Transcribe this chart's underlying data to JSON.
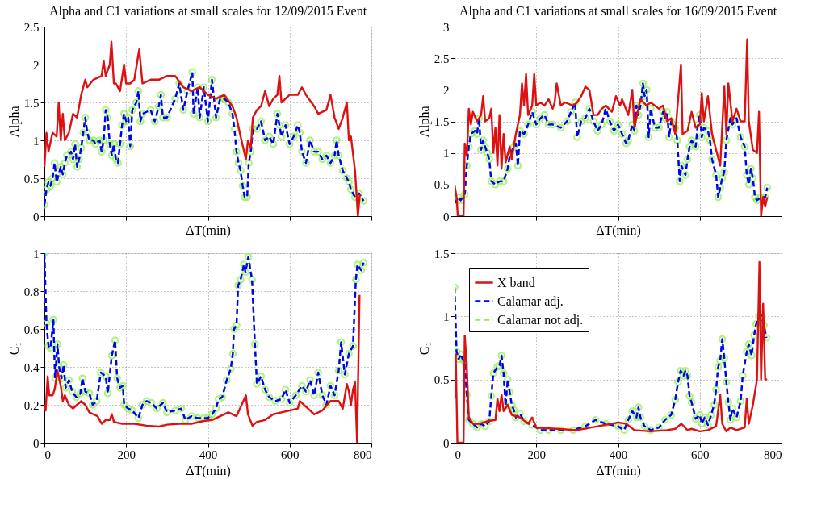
{
  "chart_data": [
    {
      "type": "line",
      "title": "Alpha and C1 variations at small scales for 12/09/2015  Event",
      "xlabel": "ΔT(min)",
      "ylabel": "Alpha",
      "xlim": [
        0,
        800
      ],
      "xticks": [
        0,
        200,
        400,
        600,
        800
      ],
      "ylim": [
        0,
        2.5
      ],
      "yticks": [
        0,
        0.5,
        1,
        1.5,
        2,
        2.5
      ],
      "grid": true,
      "tick_labels": "y",
      "series": [
        {
          "color": "#dd1111",
          "line_style": "solid",
          "marker": "none",
          "x": [
            0,
            5,
            10,
            20,
            30,
            35,
            40,
            45,
            50,
            60,
            70,
            80,
            90,
            100,
            105,
            120,
            140,
            145,
            150,
            160,
            164,
            170,
            175,
            185,
            195,
            200,
            210,
            220,
            232,
            240,
            260,
            280,
            300,
            320,
            340,
            360,
            380,
            400,
            420,
            440,
            460,
            470,
            480,
            493,
            498,
            505,
            510,
            520,
            530,
            540,
            550,
            560,
            570,
            575,
            580,
            600,
            620,
            630,
            640,
            660,
            670,
            690,
            700,
            710,
            720,
            730,
            740,
            745,
            750,
            760,
            767,
            772
          ],
          "values": [
            0.65,
            1.1,
            0.85,
            1.1,
            1.05,
            1.5,
            1.0,
            1.35,
            1.0,
            1.1,
            1.35,
            1.3,
            1.6,
            1.8,
            1.7,
            1.8,
            1.85,
            2.05,
            1.85,
            2.0,
            2.3,
            1.75,
            1.75,
            1.65,
            2.0,
            1.75,
            1.75,
            1.8,
            2.2,
            1.75,
            1.8,
            1.8,
            1.85,
            1.85,
            1.7,
            1.65,
            1.7,
            1.6,
            1.55,
            1.6,
            1.45,
            1.3,
            1.05,
            0.75,
            1.0,
            0.9,
            1.3,
            1.4,
            1.45,
            1.65,
            1.45,
            1.55,
            1.6,
            1.85,
            1.5,
            1.6,
            1.6,
            1.7,
            1.6,
            1.45,
            1.35,
            1.4,
            1.6,
            1.3,
            1.15,
            1.3,
            1.5,
            1.0,
            1.05,
            0.6,
            0.0,
            0.3
          ]
        },
        {
          "color": "#0000ff",
          "line_style": "dashed",
          "marker": "none",
          "x": [
            0,
            5,
            10,
            15,
            20,
            25,
            30,
            40,
            45,
            50,
            55,
            65,
            70,
            75,
            80,
            85,
            90,
            95,
            100,
            105,
            110,
            120,
            125,
            135,
            140,
            145,
            150,
            155,
            160,
            165,
            170,
            175,
            180,
            185,
            190,
            195,
            200,
            205,
            210,
            215,
            225,
            230,
            235,
            240,
            260,
            270,
            280,
            285,
            290,
            300,
            320,
            330,
            340,
            350,
            362,
            365,
            375,
            380,
            390,
            400,
            410,
            420,
            430,
            440,
            450,
            460,
            465,
            470,
            475,
            480,
            485,
            490,
            496,
            500,
            505,
            510,
            520,
            530,
            540,
            550,
            560,
            570,
            575,
            580,
            590,
            600,
            610,
            620,
            625,
            630,
            640,
            650,
            660,
            670,
            680,
            690,
            700,
            710,
            715,
            720,
            730,
            740,
            745,
            750,
            760,
            770,
            781
          ],
          "values": [
            0.15,
            0.35,
            0.45,
            0.4,
            0.5,
            0.7,
            0.45,
            0.65,
            0.55,
            0.7,
            0.8,
            0.85,
            0.75,
            0.95,
            0.65,
            0.75,
            0.9,
            1.1,
            1.3,
            1.1,
            1.0,
            1.0,
            0.95,
            1.0,
            0.85,
            1.0,
            1.4,
            1.3,
            0.95,
            0.8,
            0.95,
            0.75,
            0.7,
            0.95,
            1.2,
            1.35,
            1.25,
            1.3,
            0.92,
            1.4,
            1.5,
            1.65,
            1.25,
            1.35,
            1.4,
            1.25,
            1.45,
            1.6,
            1.3,
            1.3,
            1.55,
            1.75,
            1.4,
            1.65,
            1.9,
            1.35,
            1.7,
            1.3,
            1.7,
            1.25,
            1.8,
            1.3,
            1.55,
            1.55,
            1.5,
            1.35,
            1.15,
            0.85,
            0.7,
            0.6,
            0.4,
            0.25,
            0.25,
            0.7,
            0.85,
            1.15,
            1.15,
            1.25,
            1.0,
            1.05,
            0.95,
            1.35,
            1.2,
            1.05,
            1.2,
            0.95,
            1.05,
            1.2,
            1.1,
            0.85,
            0.7,
            1.0,
            0.85,
            0.85,
            0.75,
            0.8,
            0.7,
            0.8,
            1.0,
            0.8,
            0.6,
            0.5,
            0.45,
            0.35,
            0.25,
            0.3,
            0.2
          ]
        },
        {
          "color": "#90ee50",
          "line_style": "dashed",
          "marker": "circle",
          "x": [
            0,
            5,
            10,
            15,
            20,
            25,
            30,
            40,
            45,
            50,
            55,
            65,
            70,
            75,
            80,
            85,
            90,
            95,
            100,
            105,
            110,
            120,
            125,
            135,
            140,
            145,
            150,
            155,
            160,
            165,
            170,
            175,
            180,
            185,
            190,
            195,
            200,
            205,
            210,
            215,
            225,
            230,
            235,
            240,
            260,
            270,
            280,
            285,
            290,
            300,
            320,
            330,
            340,
            350,
            362,
            365,
            375,
            380,
            390,
            400,
            410,
            420,
            430,
            440,
            450,
            460,
            465,
            470,
            475,
            480,
            485,
            490,
            496,
            500,
            505,
            510,
            520,
            530,
            540,
            550,
            560,
            570,
            575,
            580,
            590,
            600,
            610,
            620,
            625,
            630,
            640,
            650,
            660,
            670,
            680,
            690,
            700,
            710,
            715,
            720,
            730,
            740,
            745,
            750,
            760,
            770,
            781
          ],
          "values": [
            0.15,
            0.35,
            0.45,
            0.4,
            0.5,
            0.7,
            0.45,
            0.65,
            0.55,
            0.7,
            0.8,
            0.85,
            0.75,
            0.95,
            0.65,
            0.75,
            0.9,
            1.1,
            1.3,
            1.1,
            1.0,
            1.0,
            0.95,
            1.0,
            0.85,
            1.0,
            1.4,
            1.3,
            0.95,
            0.8,
            0.95,
            0.75,
            0.7,
            0.95,
            1.2,
            1.35,
            1.25,
            1.3,
            0.92,
            1.4,
            1.5,
            1.65,
            1.25,
            1.35,
            1.4,
            1.25,
            1.45,
            1.6,
            1.3,
            1.3,
            1.55,
            1.75,
            1.4,
            1.65,
            1.9,
            1.35,
            1.7,
            1.3,
            1.7,
            1.25,
            1.8,
            1.3,
            1.55,
            1.55,
            1.5,
            1.35,
            1.15,
            0.85,
            0.7,
            0.6,
            0.4,
            0.25,
            0.25,
            0.7,
            0.85,
            1.15,
            1.15,
            1.25,
            1.0,
            1.05,
            0.95,
            1.35,
            1.2,
            1.05,
            1.2,
            0.95,
            1.05,
            1.2,
            1.1,
            0.85,
            0.7,
            1.0,
            0.85,
            0.85,
            0.75,
            0.8,
            0.7,
            0.8,
            1.0,
            0.8,
            0.6,
            0.5,
            0.45,
            0.35,
            0.25,
            0.3,
            0.2
          ]
        }
      ]
    },
    {
      "type": "line",
      "title": "Alpha and C1 variations at small scales for 16/09/2015  Event",
      "xlabel": "ΔT(min)",
      "ylabel": "Alpha",
      "xlim": [
        0,
        800
      ],
      "xticks": [
        0,
        200,
        400,
        600,
        800
      ],
      "ylim": [
        0,
        3
      ],
      "yticks": [
        0,
        0.5,
        1,
        1.5,
        2,
        2.5,
        3
      ],
      "grid": true,
      "tick_labels": "y",
      "series": [
        {
          "color": "#dd1111",
          "line_style": "solid",
          "marker": "none",
          "x": [
            0,
            5,
            8,
            22,
            25,
            30,
            35,
            40,
            45,
            55,
            65,
            70,
            75,
            85,
            90,
            95,
            100,
            105,
            110,
            115,
            120,
            125,
            135,
            140,
            150,
            160,
            165,
            170,
            175,
            180,
            190,
            195,
            200,
            210,
            220,
            230,
            240,
            245,
            250,
            260,
            270,
            290,
            300,
            310,
            320,
            330,
            340,
            350,
            360,
            370,
            385,
            395,
            405,
            410,
            425,
            435,
            440,
            455,
            470,
            480,
            500,
            510,
            520,
            530,
            540,
            554,
            558,
            570,
            580,
            590,
            600,
            605,
            610,
            620,
            630,
            640,
            650,
            660,
            665,
            670,
            680,
            690,
            700,
            710,
            716,
            720,
            730,
            740,
            745,
            750,
            755,
            760,
            765
          ],
          "values": [
            0.5,
            0.3,
            0.0,
            0.0,
            1.15,
            0.95,
            1.7,
            1.45,
            1.65,
            1.5,
            1.6,
            1.9,
            1.5,
            1.55,
            1.7,
            1.0,
            1.4,
            0.8,
            1.6,
            0.75,
            1.3,
            0.85,
            1.1,
            0.9,
            1.3,
            1.6,
            2.1,
            1.75,
            2.25,
            1.6,
            1.75,
            2.25,
            1.75,
            1.8,
            1.75,
            1.85,
            1.7,
            1.8,
            2.1,
            1.75,
            1.8,
            1.75,
            1.8,
            1.9,
            2.05,
            2.0,
            1.6,
            1.6,
            1.7,
            1.75,
            1.65,
            1.9,
            1.75,
            1.85,
            1.6,
            2.0,
            1.4,
            1.85,
            1.75,
            1.8,
            1.7,
            1.75,
            1.5,
            1.55,
            1.3,
            2.4,
            1.3,
            1.35,
            1.65,
            1.4,
            1.45,
            1.95,
            1.5,
            1.9,
            1.3,
            1.05,
            0.8,
            2.05,
            1.3,
            2.1,
            1.5,
            1.7,
            1.5,
            1.5,
            2.8,
            1.5,
            1.05,
            1.0,
            1.65,
            0.0,
            0.3,
            0.15,
            0.3
          ]
        },
        {
          "color": "#0000ff",
          "line_style": "dashed",
          "marker": "none",
          "x": [
            0,
            10,
            15,
            25,
            30,
            35,
            40,
            50,
            55,
            60,
            65,
            70,
            75,
            80,
            85,
            90,
            100,
            110,
            120,
            130,
            135,
            145,
            150,
            155,
            160,
            170,
            180,
            190,
            200,
            210,
            220,
            230,
            240,
            260,
            275,
            285,
            295,
            300,
            310,
            320,
            330,
            340,
            350,
            360,
            370,
            380,
            390,
            400,
            410,
            420,
            425,
            435,
            440,
            445,
            450,
            455,
            461,
            465,
            470,
            475,
            480,
            490,
            500,
            510,
            515,
            520,
            525,
            530,
            540,
            545,
            551,
            555,
            565,
            570,
            575,
            580,
            590,
            595,
            600,
            605,
            610,
            620,
            625,
            630,
            640,
            645,
            650,
            655,
            660,
            665,
            675,
            680,
            690,
            700,
            710,
            715,
            720,
            725,
            730,
            735,
            740,
            750,
            760,
            765
          ],
          "values": [
            0.2,
            0.3,
            0.25,
            0.35,
            0.8,
            1.1,
            1.3,
            1.35,
            1.3,
            1.55,
            1.05,
            1.2,
            1.1,
            1.0,
            0.9,
            0.55,
            0.5,
            0.55,
            0.55,
            0.75,
            0.95,
            1.1,
            1.15,
            0.8,
            1.35,
            1.3,
            1.45,
            1.65,
            1.45,
            1.55,
            1.6,
            1.45,
            1.45,
            1.4,
            1.5,
            1.65,
            1.8,
            1.25,
            1.5,
            1.55,
            1.7,
            1.5,
            1.35,
            1.45,
            1.7,
            1.5,
            1.35,
            1.45,
            1.3,
            1.15,
            1.2,
            1.45,
            1.35,
            1.75,
            1.6,
            1.75,
            2.1,
            1.9,
            2.0,
            1.25,
            1.7,
            1.4,
            1.4,
            1.65,
            1.55,
            1.65,
            1.25,
            1.5,
            1.4,
            1.2,
            0.55,
            0.8,
            0.65,
            0.9,
            1.1,
            1.2,
            1.1,
            1.45,
            1.6,
            1.25,
            1.4,
            1.35,
            1.2,
            0.9,
            0.65,
            0.3,
            0.45,
            0.6,
            0.7,
            1.2,
            1.55,
            1.45,
            1.55,
            1.25,
            1.1,
            0.65,
            0.5,
            0.75,
            0.6,
            0.3,
            0.25,
            0.3,
            0.3,
            0.45
          ]
        },
        {
          "color": "#90ee50",
          "line_style": "dashed",
          "marker": "circle",
          "x": [
            0,
            10,
            15,
            25,
            30,
            35,
            40,
            50,
            55,
            60,
            65,
            70,
            75,
            80,
            85,
            90,
            100,
            110,
            120,
            130,
            135,
            145,
            150,
            155,
            160,
            170,
            180,
            190,
            200,
            210,
            220,
            230,
            240,
            260,
            275,
            285,
            295,
            300,
            310,
            320,
            330,
            340,
            350,
            360,
            370,
            380,
            390,
            400,
            410,
            420,
            425,
            435,
            440,
            445,
            450,
            455,
            461,
            465,
            470,
            475,
            480,
            490,
            500,
            510,
            515,
            520,
            525,
            530,
            540,
            545,
            551,
            555,
            565,
            570,
            575,
            580,
            590,
            595,
            600,
            605,
            610,
            620,
            625,
            630,
            640,
            645,
            650,
            655,
            660,
            665,
            675,
            680,
            690,
            700,
            710,
            715,
            720,
            725,
            730,
            735,
            740,
            750,
            760,
            765
          ],
          "values": [
            0.2,
            0.3,
            0.25,
            0.35,
            0.8,
            1.1,
            1.3,
            1.35,
            1.3,
            1.55,
            1.05,
            1.2,
            1.1,
            1.0,
            0.9,
            0.55,
            0.5,
            0.55,
            0.55,
            0.75,
            0.95,
            1.1,
            1.15,
            0.8,
            1.35,
            1.3,
            1.45,
            1.65,
            1.45,
            1.55,
            1.6,
            1.45,
            1.45,
            1.4,
            1.5,
            1.65,
            1.8,
            1.25,
            1.5,
            1.55,
            1.7,
            1.5,
            1.35,
            1.45,
            1.7,
            1.5,
            1.35,
            1.45,
            1.3,
            1.15,
            1.2,
            1.45,
            1.35,
            1.75,
            1.6,
            1.75,
            2.1,
            1.9,
            2.0,
            1.25,
            1.7,
            1.4,
            1.4,
            1.65,
            1.55,
            1.65,
            1.25,
            1.5,
            1.4,
            1.2,
            0.55,
            0.8,
            0.65,
            0.9,
            1.1,
            1.2,
            1.1,
            1.45,
            1.6,
            1.25,
            1.4,
            1.35,
            1.2,
            0.9,
            0.65,
            0.3,
            0.45,
            0.6,
            0.7,
            1.2,
            1.55,
            1.45,
            1.55,
            1.25,
            1.1,
            0.65,
            0.5,
            0.75,
            0.6,
            0.3,
            0.25,
            0.3,
            0.3,
            0.45
          ]
        }
      ]
    },
    {
      "type": "line",
      "xlabel": "ΔT(min)",
      "ylabel": "C₁",
      "xlim": [
        0,
        800
      ],
      "xticks": [
        0,
        200,
        400,
        600,
        800
      ],
      "ylim": [
        0,
        1
      ],
      "yticks": [
        0,
        0.2,
        0.4,
        0.6,
        0.8,
        1
      ],
      "grid": true,
      "series": [
        {
          "color": "#dd1111",
          "line_style": "solid",
          "marker": "none",
          "x": [
            0,
            3,
            8,
            12,
            20,
            25,
            32,
            35,
            40,
            45,
            50,
            60,
            70,
            80,
            90,
            100,
            110,
            120,
            130,
            140,
            150,
            160,
            165,
            170,
            190,
            220,
            250,
            280,
            300,
            330,
            360,
            390,
            410,
            430,
            450,
            470,
            493,
            498,
            509,
            520,
            540,
            560,
            580,
            600,
            620,
            625,
            640,
            660,
            680,
            700,
            720,
            730,
            740,
            745,
            750,
            755,
            760,
            765,
            771
          ],
          "values": [
            0.2,
            0.17,
            0.35,
            0.25,
            0.25,
            0.28,
            0.38,
            0.35,
            0.3,
            0.22,
            0.25,
            0.2,
            0.18,
            0.2,
            0.22,
            0.2,
            0.16,
            0.15,
            0.14,
            0.1,
            0.12,
            0.12,
            0.15,
            0.11,
            0.1,
            0.1,
            0.09,
            0.085,
            0.095,
            0.1,
            0.1,
            0.115,
            0.12,
            0.14,
            0.16,
            0.14,
            0.25,
            0.15,
            0.09,
            0.11,
            0.12,
            0.15,
            0.16,
            0.17,
            0.18,
            0.22,
            0.19,
            0.15,
            0.17,
            0.22,
            0.22,
            0.18,
            0.31,
            0.27,
            0.2,
            0.28,
            0.32,
            0.0,
            0.78
          ]
        },
        {
          "color": "#0000ff",
          "line_style": "dashed",
          "marker": "none",
          "x": [
            0,
            5,
            10,
            15,
            22,
            26,
            32,
            36,
            42,
            47,
            52,
            60,
            68,
            78,
            88,
            93,
            100,
            110,
            118,
            128,
            138,
            150,
            155,
            165,
            173,
            178,
            185,
            192,
            195,
            205,
            215,
            230,
            240,
            250,
            262,
            275,
            290,
            300,
            320,
            335,
            345,
            360,
            375,
            390,
            400,
            410,
            420,
            426,
            435,
            446,
            456,
            461,
            464,
            470,
            474,
            480,
            488,
            492,
            499,
            508,
            515,
            520,
            530,
            540,
            550,
            565,
            580,
            590,
            600,
            615,
            630,
            640,
            650,
            660,
            670,
            680,
            690,
            700,
            710,
            720,
            726,
            735,
            745,
            755,
            762,
            766,
            775,
            781
          ],
          "values": [
            1.0,
            0.63,
            0.51,
            0.5,
            0.65,
            0.34,
            0.52,
            0.4,
            0.34,
            0.41,
            0.29,
            0.33,
            0.27,
            0.24,
            0.26,
            0.34,
            0.27,
            0.26,
            0.2,
            0.22,
            0.37,
            0.35,
            0.26,
            0.46,
            0.54,
            0.34,
            0.29,
            0.3,
            0.2,
            0.18,
            0.17,
            0.13,
            0.2,
            0.22,
            0.21,
            0.18,
            0.21,
            0.16,
            0.17,
            0.18,
            0.12,
            0.14,
            0.13,
            0.13,
            0.13,
            0.15,
            0.18,
            0.23,
            0.24,
            0.33,
            0.39,
            0.47,
            0.6,
            0.62,
            0.83,
            0.86,
            0.94,
            0.9,
            0.98,
            0.86,
            0.52,
            0.31,
            0.35,
            0.28,
            0.24,
            0.22,
            0.23,
            0.28,
            0.21,
            0.25,
            0.3,
            0.27,
            0.33,
            0.25,
            0.37,
            0.25,
            0.2,
            0.3,
            0.25,
            0.38,
            0.53,
            0.36,
            0.47,
            0.51,
            0.86,
            0.94,
            0.91,
            0.95
          ]
        },
        {
          "color": "#90ee50",
          "line_style": "dashed",
          "marker": "circle",
          "x": [
            0,
            5,
            10,
            15,
            22,
            26,
            32,
            36,
            42,
            47,
            52,
            60,
            68,
            78,
            88,
            93,
            100,
            110,
            118,
            128,
            138,
            150,
            155,
            165,
            173,
            178,
            185,
            192,
            195,
            205,
            215,
            230,
            240,
            250,
            262,
            275,
            290,
            300,
            320,
            335,
            345,
            360,
            375,
            390,
            400,
            410,
            420,
            426,
            435,
            446,
            456,
            461,
            464,
            470,
            474,
            480,
            488,
            492,
            499,
            508,
            515,
            520,
            530,
            540,
            550,
            565,
            580,
            590,
            600,
            615,
            630,
            640,
            650,
            660,
            670,
            680,
            690,
            700,
            710,
            720,
            726,
            735,
            745,
            755,
            762,
            766,
            775,
            781
          ],
          "values": [
            1.0,
            0.63,
            0.51,
            0.5,
            0.65,
            0.34,
            0.52,
            0.4,
            0.34,
            0.41,
            0.29,
            0.33,
            0.27,
            0.24,
            0.26,
            0.34,
            0.27,
            0.26,
            0.2,
            0.22,
            0.37,
            0.35,
            0.26,
            0.46,
            0.54,
            0.34,
            0.29,
            0.3,
            0.2,
            0.18,
            0.17,
            0.13,
            0.2,
            0.22,
            0.21,
            0.18,
            0.21,
            0.16,
            0.17,
            0.18,
            0.12,
            0.14,
            0.13,
            0.13,
            0.13,
            0.15,
            0.18,
            0.23,
            0.24,
            0.33,
            0.39,
            0.47,
            0.6,
            0.62,
            0.83,
            0.86,
            0.94,
            0.9,
            0.98,
            0.86,
            0.52,
            0.31,
            0.35,
            0.28,
            0.24,
            0.22,
            0.23,
            0.28,
            0.21,
            0.25,
            0.3,
            0.27,
            0.33,
            0.25,
            0.37,
            0.25,
            0.2,
            0.3,
            0.25,
            0.38,
            0.53,
            0.36,
            0.47,
            0.51,
            0.86,
            0.94,
            0.91,
            0.95
          ]
        }
      ]
    },
    {
      "type": "line",
      "xlabel": "ΔT(min)",
      "ylabel": "C₁",
      "xlim": [
        0,
        800
      ],
      "xticks": [
        0,
        200,
        400,
        600,
        800
      ],
      "ylim": [
        0,
        1.5
      ],
      "yticks": [
        0,
        0.5,
        1,
        1.5
      ],
      "grid": true,
      "legend": "top left",
      "series": [
        {
          "name": "X band",
          "color": "#dd1111",
          "line_style": "solid",
          "marker": "none",
          "x": [
            0,
            3,
            7,
            22,
            25,
            30,
            35,
            45,
            60,
            80,
            100,
            105,
            110,
            115,
            120,
            130,
            140,
            160,
            180,
            190,
            200,
            250,
            300,
            350,
            400,
            420,
            440,
            480,
            520,
            540,
            555,
            570,
            580,
            600,
            620,
            640,
            650,
            655,
            665,
            675,
            690,
            710,
            715,
            720,
            730,
            740,
            746,
            750,
            755,
            760,
            765
          ],
          "values": [
            0.35,
            0.7,
            0.0,
            0.0,
            0.85,
            0.6,
            0.2,
            0.15,
            0.15,
            0.17,
            0.18,
            0.35,
            0.25,
            0.38,
            0.25,
            0.3,
            0.22,
            0.2,
            0.15,
            0.2,
            0.12,
            0.11,
            0.1,
            0.13,
            0.16,
            0.15,
            0.1,
            0.09,
            0.1,
            0.11,
            0.15,
            0.1,
            0.11,
            0.09,
            0.1,
            0.13,
            0.38,
            0.15,
            0.09,
            0.12,
            0.1,
            0.12,
            0.35,
            0.15,
            0.3,
            0.5,
            1.43,
            0.5,
            1.1,
            0.5,
            0.5
          ]
        },
        {
          "name": "Calamar adj.",
          "color": "#0000ff",
          "line_style": "dashed",
          "marker": "none",
          "x": [
            0,
            5,
            10,
            15,
            20,
            25,
            30,
            35,
            45,
            55,
            65,
            75,
            85,
            90,
            95,
            105,
            110,
            115,
            120,
            125,
            130,
            135,
            140,
            145,
            150,
            160,
            170,
            190,
            210,
            230,
            260,
            290,
            320,
            345,
            370,
            400,
            415,
            425,
            435,
            445,
            450,
            455,
            465,
            480,
            500,
            515,
            530,
            540,
            547,
            553,
            560,
            565,
            570,
            575,
            580,
            590,
            600,
            605,
            612,
            620,
            628,
            635,
            640,
            645,
            650,
            655,
            660,
            665,
            670,
            675,
            680,
            690,
            700,
            705,
            715,
            720,
            727,
            733,
            738,
            745,
            750,
            757,
            763
          ],
          "values": [
            1.23,
            0.72,
            0.66,
            0.7,
            0.66,
            0.63,
            0.38,
            0.18,
            0.15,
            0.12,
            0.15,
            0.13,
            0.17,
            0.37,
            0.55,
            0.6,
            0.61,
            0.69,
            0.55,
            0.29,
            0.5,
            0.4,
            0.3,
            0.26,
            0.2,
            0.23,
            0.17,
            0.14,
            0.1,
            0.1,
            0.1,
            0.1,
            0.13,
            0.18,
            0.15,
            0.13,
            0.1,
            0.18,
            0.25,
            0.2,
            0.28,
            0.2,
            0.13,
            0.1,
            0.12,
            0.18,
            0.22,
            0.34,
            0.48,
            0.57,
            0.53,
            0.57,
            0.53,
            0.37,
            0.32,
            0.19,
            0.22,
            0.15,
            0.2,
            0.14,
            0.22,
            0.3,
            0.42,
            0.6,
            0.65,
            0.82,
            0.67,
            0.48,
            0.32,
            0.18,
            0.27,
            0.2,
            0.33,
            0.53,
            0.72,
            0.78,
            0.69,
            0.85,
            0.94,
            1.0,
            1.01,
            0.93,
            0.83
          ]
        },
        {
          "name": "Calamar not adj.",
          "color": "#90ee50",
          "line_style": "dashed",
          "marker": "circle",
          "x": [
            0,
            5,
            10,
            15,
            20,
            25,
            30,
            35,
            45,
            55,
            65,
            75,
            85,
            90,
            95,
            105,
            110,
            115,
            120,
            125,
            130,
            135,
            140,
            145,
            150,
            160,
            170,
            190,
            210,
            230,
            260,
            290,
            320,
            345,
            370,
            400,
            415,
            425,
            435,
            445,
            450,
            455,
            465,
            480,
            500,
            515,
            530,
            540,
            547,
            553,
            560,
            565,
            570,
            575,
            580,
            590,
            600,
            605,
            612,
            620,
            628,
            635,
            640,
            645,
            650,
            655,
            660,
            665,
            670,
            675,
            680,
            690,
            700,
            705,
            715,
            720,
            727,
            733,
            738,
            745,
            750,
            757,
            763
          ],
          "values": [
            1.23,
            0.72,
            0.66,
            0.7,
            0.66,
            0.63,
            0.38,
            0.18,
            0.15,
            0.12,
            0.15,
            0.13,
            0.17,
            0.37,
            0.55,
            0.6,
            0.61,
            0.69,
            0.55,
            0.29,
            0.5,
            0.4,
            0.3,
            0.26,
            0.2,
            0.23,
            0.17,
            0.14,
            0.1,
            0.1,
            0.1,
            0.1,
            0.13,
            0.18,
            0.15,
            0.13,
            0.1,
            0.18,
            0.25,
            0.2,
            0.28,
            0.2,
            0.13,
            0.1,
            0.12,
            0.18,
            0.22,
            0.34,
            0.48,
            0.57,
            0.53,
            0.57,
            0.53,
            0.37,
            0.32,
            0.19,
            0.22,
            0.15,
            0.2,
            0.14,
            0.22,
            0.3,
            0.42,
            0.6,
            0.65,
            0.82,
            0.67,
            0.48,
            0.32,
            0.18,
            0.27,
            0.2,
            0.33,
            0.53,
            0.72,
            0.78,
            0.69,
            0.85,
            0.94,
            1.0,
            1.01,
            0.93,
            0.83
          ]
        }
      ]
    }
  ]
}
